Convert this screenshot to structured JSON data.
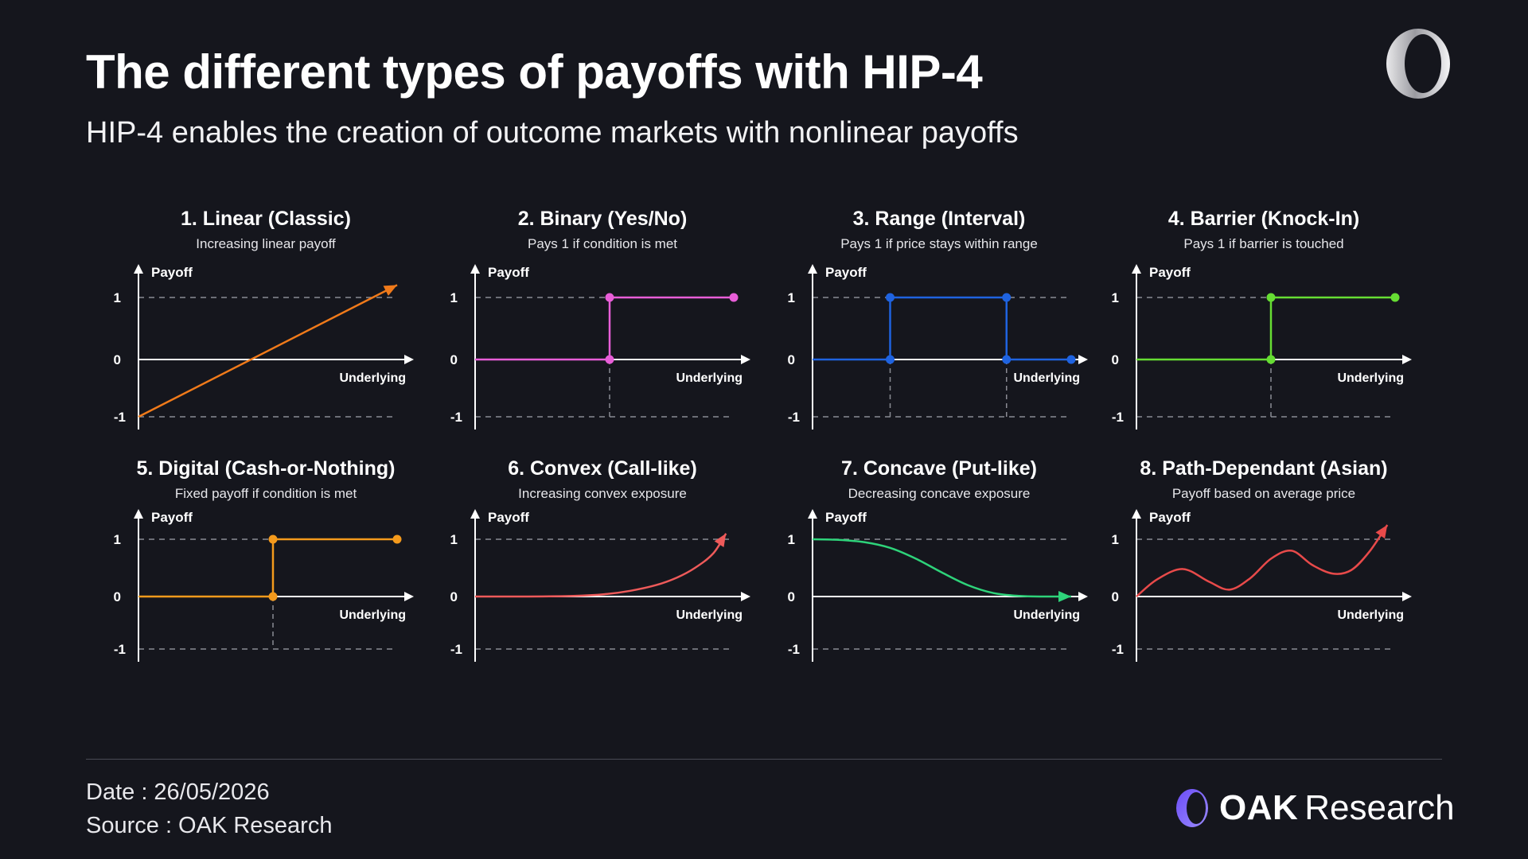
{
  "header": {
    "title": "The different types of payoffs with HIP-4",
    "subtitle": "HIP-4 enables the creation of outcome markets with nonlinear payoffs"
  },
  "footer": {
    "date": "Date : 26/05/2026",
    "source": "Source : OAK Research",
    "brand_bold": "OAK",
    "brand_light": "Research"
  },
  "chart_data": [
    {
      "type": "line",
      "title": "1. Linear (Classic)",
      "subtitle": "Increasing linear payoff",
      "ylabel": "Payoff",
      "xlabel": "Underlying",
      "yticks": [
        "1",
        "0",
        "-1"
      ],
      "color": "#f07a1a",
      "xlim": [
        0,
        1
      ],
      "ylim": [
        -1,
        1
      ],
      "x": [
        0,
        1
      ],
      "y": [
        -1,
        1.2
      ],
      "arrow_end": true,
      "markers": []
    },
    {
      "type": "line",
      "title": "2. Binary (Yes/No)",
      "subtitle": "Pays 1 if condition is met",
      "ylabel": "Payoff",
      "xlabel": "Underlying",
      "yticks": [
        "1",
        "0",
        "-1"
      ],
      "color": "#e85ed8",
      "xlim": [
        0,
        1
      ],
      "ylim": [
        -1,
        1
      ],
      "x": [
        0,
        0.52,
        0.52,
        1
      ],
      "y": [
        0,
        0,
        1,
        1
      ],
      "arrow_end": false,
      "markers": [
        [
          0.52,
          0
        ],
        [
          0.52,
          1
        ],
        [
          1,
          1
        ]
      ],
      "guides": [
        0.52
      ]
    },
    {
      "type": "line",
      "title": "3. Range (Interval)",
      "subtitle": "Pays 1 if price stays within range",
      "ylabel": "Payoff",
      "xlabel": "Underlying",
      "yticks": [
        "1",
        "0",
        "-1"
      ],
      "color": "#1f63e0",
      "xlim": [
        0,
        1
      ],
      "ylim": [
        -1,
        1
      ],
      "x": [
        0,
        0.3,
        0.3,
        0.75,
        0.75,
        1
      ],
      "y": [
        0,
        0,
        1,
        1,
        0,
        0
      ],
      "arrow_end": false,
      "markers": [
        [
          0.3,
          0
        ],
        [
          0.3,
          1
        ],
        [
          0.75,
          1
        ],
        [
          0.75,
          0
        ],
        [
          1,
          0
        ]
      ],
      "guides": [
        0.3,
        0.75
      ]
    },
    {
      "type": "line",
      "title": "4. Barrier (Knock-In)",
      "subtitle": "Pays 1 if barrier is touched",
      "ylabel": "Payoff",
      "xlabel": "Underlying",
      "yticks": [
        "1",
        "0",
        "-1"
      ],
      "color": "#66dd33",
      "xlim": [
        0,
        1
      ],
      "ylim": [
        -1,
        1
      ],
      "x": [
        0,
        0.52,
        0.52,
        1
      ],
      "y": [
        0,
        0,
        1,
        1
      ],
      "arrow_end": false,
      "markers": [
        [
          0.52,
          0
        ],
        [
          0.52,
          1
        ],
        [
          1,
          1
        ]
      ],
      "guides": [
        0.52
      ]
    },
    {
      "type": "line",
      "title": "5. Digital (Cash-or-Nothing)",
      "subtitle": "Fixed payoff if condition is met",
      "ylabel": "Payoff",
      "xlabel": "Underlying",
      "yticks": [
        "1",
        "0",
        "-1"
      ],
      "color": "#f49a1c",
      "xlim": [
        0,
        1
      ],
      "ylim": [
        -1,
        1
      ],
      "x": [
        0,
        0.52,
        0.52,
        1
      ],
      "y": [
        0,
        0,
        1,
        1
      ],
      "arrow_end": false,
      "markers": [
        [
          0.52,
          0
        ],
        [
          0.52,
          1
        ],
        [
          1,
          1
        ]
      ],
      "guides": [
        0.52
      ]
    },
    {
      "type": "line",
      "title": "6. Convex (Call-like)",
      "subtitle": "Increasing convex exposure",
      "ylabel": "Payoff",
      "xlabel": "Underlying",
      "yticks": [
        "1",
        "0",
        "-1"
      ],
      "color": "#ee5a5a",
      "xlim": [
        0,
        1
      ],
      "ylim": [
        -1,
        1
      ],
      "x": [
        0,
        0.2,
        0.38,
        0.5,
        0.6,
        0.7,
        0.78,
        0.85,
        0.92,
        0.97
      ],
      "y": [
        0,
        0,
        0.01,
        0.04,
        0.1,
        0.2,
        0.33,
        0.5,
        0.75,
        1.1
      ],
      "arrow_end": true,
      "markers": []
    },
    {
      "type": "line",
      "title": "7. Concave (Put-like)",
      "subtitle": "Decreasing concave exposure",
      "ylabel": "Payoff",
      "xlabel": "Underlying",
      "yticks": [
        "1",
        "0",
        "-1"
      ],
      "color": "#2ed37a",
      "xlim": [
        0,
        1
      ],
      "ylim": [
        -1,
        1
      ],
      "x": [
        0,
        0.1,
        0.2,
        0.3,
        0.4,
        0.5,
        0.6,
        0.7,
        0.8,
        0.9,
        1.0
      ],
      "y": [
        1,
        0.99,
        0.95,
        0.85,
        0.66,
        0.42,
        0.2,
        0.06,
        0.01,
        0,
        0
      ],
      "arrow_end": true,
      "markers": []
    },
    {
      "type": "line",
      "title": "8. Path-Dependant (Asian)",
      "subtitle": "Payoff based on average price",
      "ylabel": "Payoff",
      "xlabel": "Underlying",
      "yticks": [
        "1",
        "0",
        "-1"
      ],
      "color": "#e84a4a",
      "xlim": [
        0,
        1
      ],
      "ylim": [
        -1,
        1
      ],
      "x": [
        0,
        0.08,
        0.18,
        0.28,
        0.36,
        0.44,
        0.52,
        0.6,
        0.68,
        0.76,
        0.83,
        0.9,
        0.97
      ],
      "y": [
        0,
        0.3,
        0.48,
        0.26,
        0.12,
        0.32,
        0.66,
        0.8,
        0.55,
        0.4,
        0.46,
        0.78,
        1.25
      ],
      "smooth": true,
      "arrow_end": true,
      "markers": []
    }
  ]
}
